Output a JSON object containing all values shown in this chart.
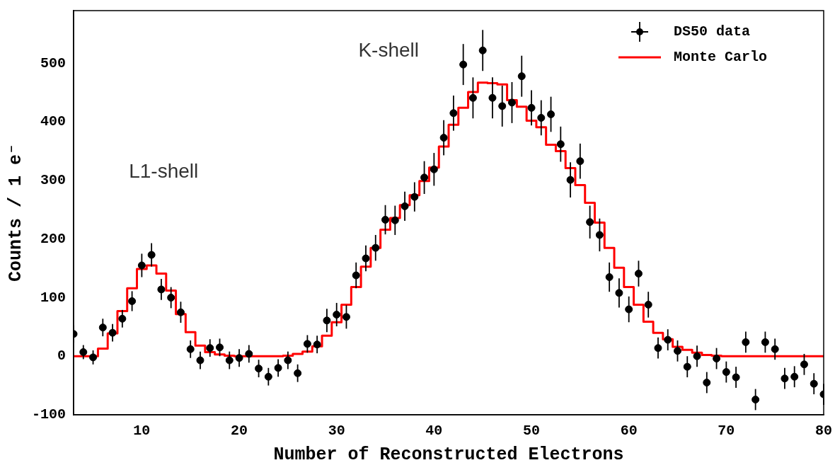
{
  "chart_data": {
    "type": "scatter",
    "xlabel": "Number of Reconstructed Electrons",
    "ylabel": "Counts / 1 e⁻",
    "x": [
      3,
      4,
      5,
      6,
      7,
      8,
      9,
      10,
      11,
      12,
      13,
      14,
      15,
      16,
      17,
      18,
      19,
      20,
      21,
      22,
      23,
      24,
      25,
      26,
      27,
      28,
      29,
      30,
      31,
      32,
      33,
      34,
      35,
      36,
      37,
      38,
      39,
      40,
      41,
      42,
      43,
      44,
      45,
      46,
      47,
      48,
      49,
      50,
      51,
      52,
      53,
      54,
      55,
      56,
      57,
      58,
      59,
      60,
      61,
      62,
      63,
      64,
      65,
      66,
      67,
      68,
      69,
      70,
      71,
      72,
      73,
      74,
      75,
      76,
      77,
      78,
      79,
      80
    ],
    "series": [
      {
        "name": "DS50 data",
        "color": "#000000",
        "marker": "circle",
        "values": [
          38,
          7,
          -2,
          49,
          40,
          64,
          94,
          155,
          173,
          114,
          100,
          75,
          12,
          -7,
          14,
          15,
          -7,
          -3,
          4,
          -21,
          -35,
          -20,
          -7,
          -29,
          21,
          20,
          61,
          71,
          67,
          138,
          167,
          185,
          233,
          232,
          256,
          272,
          305,
          319,
          373,
          415,
          498,
          441,
          522,
          441,
          427,
          433,
          478,
          424,
          407,
          413,
          362,
          301,
          333,
          229,
          207,
          135,
          108,
          80,
          141,
          88,
          14,
          28,
          9,
          -18,
          0,
          -45,
          -4,
          -27,
          -36,
          24,
          -74,
          24,
          12,
          -38,
          -35,
          -14,
          -47,
          -65
        ],
        "errors": [
          15,
          12,
          12,
          15,
          15,
          15,
          17,
          20,
          20,
          18,
          18,
          18,
          15,
          15,
          15,
          15,
          15,
          15,
          15,
          15,
          15,
          15,
          15,
          15,
          15,
          15,
          20,
          20,
          20,
          22,
          22,
          22,
          25,
          25,
          25,
          25,
          28,
          28,
          30,
          30,
          35,
          35,
          35,
          35,
          35,
          35,
          35,
          30,
          30,
          30,
          30,
          30,
          30,
          28,
          28,
          25,
          25,
          22,
          22,
          22,
          18,
          18,
          18,
          18,
          18,
          18,
          18,
          18,
          18,
          18,
          18,
          18,
          18,
          18,
          18,
          18,
          18,
          18
        ]
      },
      {
        "name": "Monte Carlo",
        "type": "step",
        "color": "#ff0000",
        "marker": "none",
        "values": [
          0,
          0,
          0,
          13,
          39,
          77,
          116,
          149,
          155,
          141,
          112,
          72,
          41,
          18,
          7,
          3,
          1,
          0,
          0,
          0,
          0,
          0,
          1,
          4,
          8,
          17,
          35,
          58,
          88,
          118,
          153,
          185,
          216,
          236,
          258,
          275,
          299,
          322,
          358,
          395,
          424,
          451,
          467,
          466,
          464,
          437,
          426,
          402,
          391,
          361,
          350,
          321,
          292,
          262,
          228,
          185,
          151,
          118,
          88,
          59,
          40,
          29,
          16,
          11,
          6,
          2,
          1,
          0,
          0,
          0,
          0,
          0,
          0,
          0,
          0,
          0,
          0,
          0
        ]
      }
    ],
    "xlim": [
      3,
      80
    ],
    "xticks": [
      10,
      20,
      30,
      40,
      50,
      60,
      70,
      80
    ],
    "ylim": [
      -100,
      590
    ],
    "yticks": [
      -100,
      0,
      100,
      200,
      300,
      400,
      500
    ],
    "grid": false,
    "legend": "top right",
    "annotations": [
      "K-shell",
      "L1-shell"
    ]
  }
}
